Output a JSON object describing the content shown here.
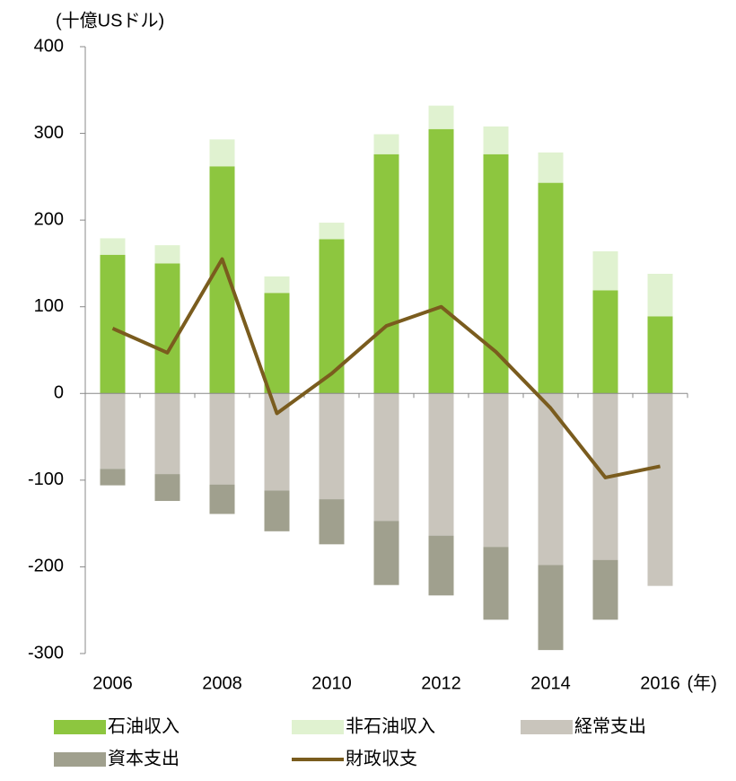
{
  "chart_data": {
    "type": "bar",
    "stacked": true,
    "y_label": "(十億USドル)",
    "x_label": "(年)",
    "categories": [
      "2006",
      null,
      "2008",
      null,
      "2010",
      null,
      "2012",
      null,
      "2014",
      null,
      "2016"
    ],
    "series": [
      {
        "name": "石油収入",
        "color": "#8dc63f",
        "values": [
          160,
          150,
          262,
          116,
          178,
          276,
          305,
          276,
          243,
          119,
          89
        ]
      },
      {
        "name": "非石油収入",
        "color": "#e0f2d0",
        "values": [
          19,
          21,
          31,
          19,
          19,
          23,
          27,
          32,
          35,
          45,
          49
        ]
      },
      {
        "name": "経常支出",
        "color": "#c9c5bc",
        "values": [
          -87,
          -93,
          -105,
          -112,
          -122,
          -147,
          -164,
          -177,
          -198,
          -192,
          -222
        ]
      },
      {
        "name": "資本支出",
        "color": "#a0a08e",
        "values": [
          -19,
          -31,
          -34,
          -47,
          -52,
          -74,
          -69,
          -84,
          -98,
          -69,
          null
        ]
      },
      {
        "name": "財政収支",
        "color": "#7a5c1e",
        "type": "line",
        "values": [
          75,
          47,
          155,
          -23,
          23,
          78,
          100,
          48,
          -17,
          -97,
          -84
        ]
      }
    ],
    "ylim": [
      -300,
      400
    ],
    "yticks": [
      -300,
      -200,
      -100,
      0,
      100,
      200,
      300,
      400
    ]
  }
}
